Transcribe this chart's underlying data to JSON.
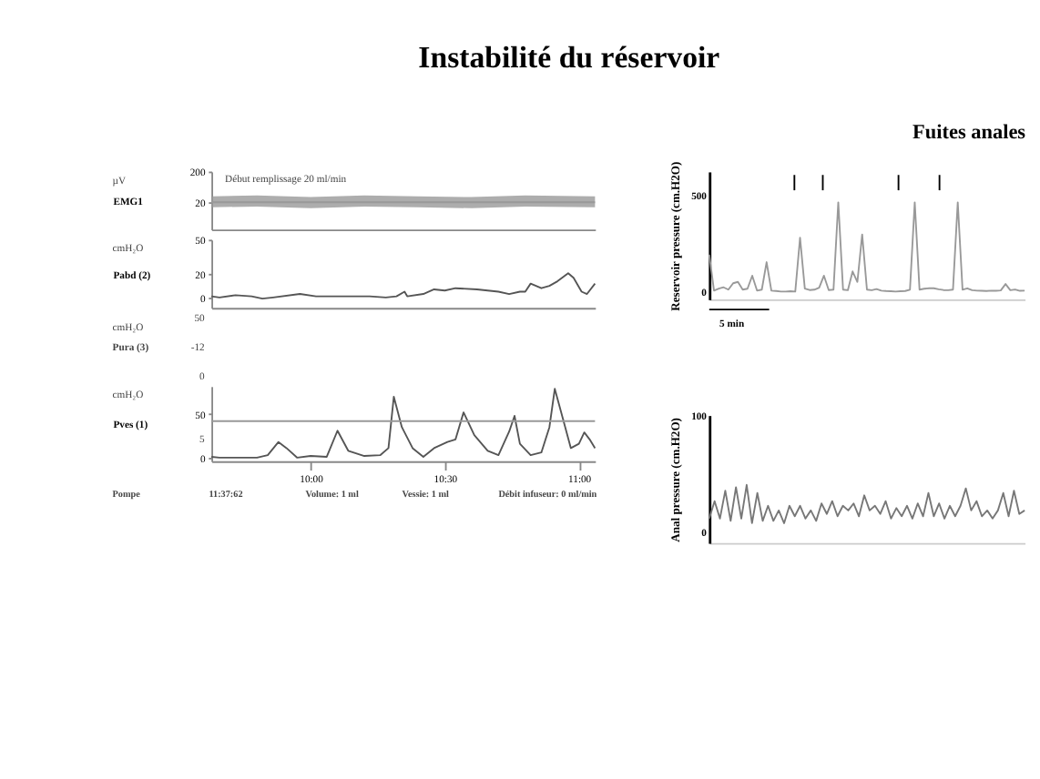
{
  "chart_data": [
    {
      "type": "line",
      "title": "Instabilité du réservoir",
      "ylabel": "EMG1",
      "annotations": [
        "µV",
        "Début remplissage 20 ml/min"
      ],
      "xlim": [
        9.63,
        11.06
      ],
      "ylim": [
        -140,
        200
      ],
      "yticks": [
        20,
        200
      ],
      "tick_labels": "y",
      "series": [
        {
          "color": "#999999",
          "x": [
            9.63,
            9.8,
            10,
            10.2,
            10.4,
            10.6,
            10.8,
            11.06
          ],
          "values": [
            20,
            20,
            20,
            20,
            20,
            20,
            20,
            20
          ],
          "lower": [
            -10,
            -5,
            -15,
            -5,
            -10,
            -15,
            -5,
            -10
          ],
          "upper": [
            55,
            60,
            50,
            60,
            55,
            50,
            60,
            55
          ]
        }
      ]
    },
    {
      "type": "line",
      "ylabel": "Pabd (2)",
      "annotations": [
        "cmH₂O"
      ],
      "xlim": [
        9.63,
        11.06
      ],
      "ylim": [
        -9,
        50
      ],
      "yticks": [
        0,
        20,
        50
      ],
      "tick_labels": "y",
      "series": [
        {
          "color": "#555555",
          "x": [
            9.63,
            9.66,
            9.72,
            9.78,
            9.82,
            9.86,
            9.96,
            10.02,
            10.1,
            10.22,
            10.28,
            10.32,
            10.35,
            10.36,
            10.42,
            10.46,
            10.5,
            10.54,
            10.62,
            10.7,
            10.74,
            10.78,
            10.8,
            10.82,
            10.84,
            10.86,
            10.89,
            10.92,
            10.96,
            10.98,
            11.01,
            11.03,
            11.06
          ],
          "values": [
            1,
            0,
            2,
            1,
            -1,
            0,
            3,
            1,
            1,
            1,
            0,
            1,
            5,
            1,
            3,
            7,
            6,
            8,
            7,
            5,
            3,
            5,
            5,
            12,
            10,
            8,
            10,
            14,
            21,
            17,
            5,
            3,
            12
          ]
        }
      ]
    },
    {
      "type": "other",
      "ylabel": "Pura (3)",
      "annotations": [
        "cmH₂O",
        "50",
        "-12",
        "0"
      ]
    },
    {
      "type": "line",
      "ylabel": "Pves (1)",
      "annotations": [
        "cmH₂O",
        "5",
        "Pompe",
        "11:37:62",
        "Volume: 1 ml",
        "Vessie: 1 ml",
        "Débit infuseur: 0 ml/min"
      ],
      "xlim": [
        9.63,
        11.06
      ],
      "ylim": [
        -4,
        82
      ],
      "yticks": [
        0,
        50
      ],
      "xticks": [
        {
          "value": 10,
          "label": "10:00"
        },
        {
          "value": 10.5,
          "label": "10:30"
        },
        {
          "value": 11,
          "label": "11:00"
        }
      ],
      "series": [
        {
          "color": "#555555",
          "x": [
            9.63,
            9.66,
            9.72,
            9.8,
            9.84,
            9.88,
            9.91,
            9.95,
            10,
            10.06,
            10.1,
            10.14,
            10.2,
            10.26,
            10.29,
            10.31,
            10.34,
            10.38,
            10.42,
            10.46,
            10.51,
            10.54,
            10.57,
            10.61,
            10.66,
            10.7,
            10.74,
            10.76,
            10.78,
            10.82,
            10.86,
            10.89,
            10.91,
            10.94,
            10.97,
            11,
            11.02,
            11.04,
            11.06
          ],
          "values": [
            1,
            0,
            0,
            0,
            3,
            18,
            11,
            0,
            2,
            1,
            31,
            8,
            2,
            3,
            11,
            70,
            35,
            11,
            1,
            11,
            18,
            21,
            52,
            26,
            8,
            3,
            30,
            48,
            16,
            3,
            6,
            35,
            79,
            45,
            11,
            16,
            29,
            21,
            11
          ]
        },
        {
          "color": "#999999",
          "x": [
            9.63,
            11.06
          ],
          "values": [
            42,
            42
          ]
        }
      ]
    },
    {
      "type": "line",
      "title": "Fuites anales",
      "ylabel": "Reservoir pressure (cm.H2O)",
      "annotations": [
        "5 min"
      ],
      "ylim": [
        -40,
        620
      ],
      "yticks": [
        0,
        500
      ],
      "tick_labels": "y",
      "categories": [
        null,
        null,
        null,
        null,
        null,
        null,
        null,
        null,
        null,
        null,
        null,
        null,
        null,
        null,
        null,
        null,
        null,
        null,
        null,
        null,
        null,
        null,
        null,
        null,
        null,
        null,
        null,
        null,
        null,
        null,
        null,
        null,
        null,
        null,
        null,
        null,
        null,
        null,
        null,
        null,
        null,
        null,
        null,
        null,
        null,
        null,
        null,
        null,
        null,
        null,
        null,
        null,
        null,
        null,
        null,
        null,
        null,
        null,
        null,
        null,
        null,
        null,
        null,
        null,
        null,
        null,
        null
      ],
      "series": [
        {
          "color": "#999999",
          "values": [
            191,
            5,
            15,
            22,
            10,
            43,
            50,
            10,
            15,
            82,
            5,
            10,
            152,
            5,
            3,
            0,
            0,
            2,
            0,
            278,
            15,
            8,
            10,
            20,
            82,
            8,
            10,
            461,
            10,
            7,
            104,
            50,
            295,
            10,
            7,
            13,
            5,
            3,
            2,
            0,
            2,
            3,
            10,
            461,
            10,
            15,
            17,
            17,
            12,
            8,
            7,
            10,
            461,
            10,
            17,
            7,
            5,
            4,
            3,
            5,
            4,
            6,
            39,
            7,
            11,
            4,
            5
          ]
        }
      ]
    },
    {
      "type": "line",
      "ylabel": "Anal pressure (cm.H2O)",
      "ylim": [
        -10,
        100
      ],
      "yticks": [
        0,
        100
      ],
      "tick_labels": "y",
      "categories": [
        null,
        null,
        null,
        null,
        null,
        null,
        null,
        null,
        null,
        null,
        null,
        null,
        null,
        null,
        null,
        null,
        null,
        null,
        null,
        null,
        null,
        null,
        null,
        null,
        null,
        null,
        null,
        null,
        null,
        null,
        null,
        null,
        null,
        null,
        null,
        null,
        null,
        null,
        null,
        null,
        null,
        null,
        null,
        null,
        null,
        null,
        null,
        null,
        null,
        null,
        null,
        null,
        null,
        null,
        null,
        null,
        null,
        null,
        null,
        null
      ],
      "series": [
        {
          "color": "#777777",
          "values": [
            11,
            26,
            11,
            35,
            9,
            38,
            11,
            40,
            7,
            33,
            9,
            22,
            9,
            18,
            7,
            22,
            13,
            22,
            11,
            18,
            9,
            24,
            15,
            26,
            13,
            22,
            18,
            24,
            13,
            31,
            18,
            22,
            15,
            26,
            11,
            20,
            13,
            22,
            11,
            24,
            13,
            33,
            13,
            24,
            11,
            22,
            13,
            22,
            37,
            18,
            26,
            13,
            18,
            11,
            18,
            33,
            13,
            35,
            15,
            18
          ]
        }
      ]
    }
  ]
}
